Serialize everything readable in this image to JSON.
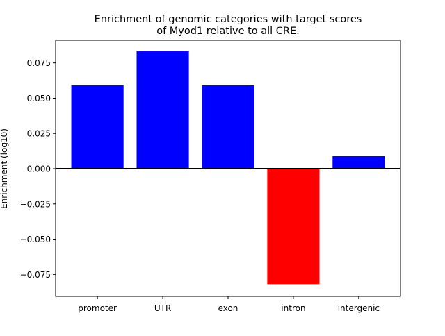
{
  "chart_data": {
    "type": "bar",
    "title_lines": [
      "Enrichment of genomic categories with target scores",
      "of Myod1 relative to all CRE."
    ],
    "xlabel": "",
    "ylabel": "Enrichment (log10)",
    "categories": [
      "promoter",
      "UTR",
      "exon",
      "intron",
      "intergenic"
    ],
    "values": [
      0.0591,
      0.0832,
      0.0591,
      -0.0819,
      0.0089
    ],
    "colors": [
      "#0000ff",
      "#0000ff",
      "#0000ff",
      "#ff0000",
      "#0000ff"
    ],
    "positive_color": "#0000ff",
    "negative_color": "#ff0000",
    "ylim": [
      -0.0906,
      0.0911
    ],
    "xlim": [
      -0.64,
      4.64
    ],
    "yticks": [
      -0.075,
      -0.05,
      -0.025,
      0.0,
      0.025,
      0.05,
      0.075
    ],
    "ytick_labels": [
      "−0.075",
      "−0.050",
      "−0.025",
      "0.000",
      "0.025",
      "0.050",
      "0.075"
    ],
    "grid": false,
    "legend": "none",
    "zero_line": true
  }
}
